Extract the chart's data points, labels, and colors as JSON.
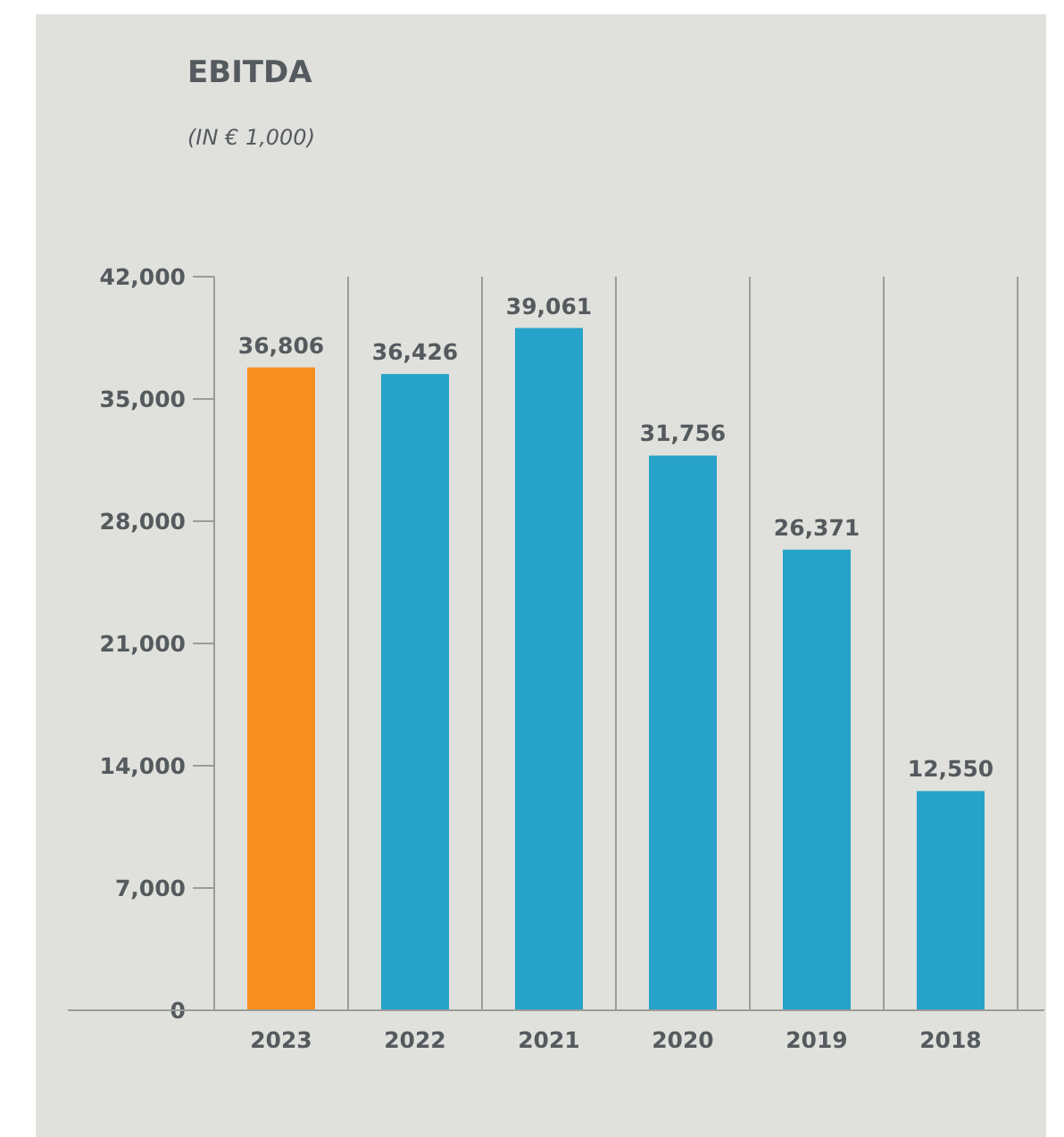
{
  "chart_data": {
    "type": "bar",
    "title": "EBITDA",
    "subtitle": "(IN € 1,000)",
    "categories": [
      "2023",
      "2022",
      "2021",
      "2020",
      "2019",
      "2018"
    ],
    "values": [
      36806,
      36426,
      39061,
      31756,
      26371,
      12550
    ],
    "colors": [
      "#f7901e",
      "#27a2c8",
      "#27a2c8",
      "#27a2c8",
      "#27a2c8",
      "#27a2c8"
    ],
    "ylim": [
      0,
      42000
    ],
    "yticks": [
      {
        "value": 0,
        "label": "0"
      },
      {
        "value": 7000,
        "label": "7,000"
      },
      {
        "value": 14000,
        "label": "14,000"
      },
      {
        "value": 21000,
        "label": "21,000"
      },
      {
        "value": 28000,
        "label": "28,000"
      },
      {
        "value": 35000,
        "label": "35,000"
      },
      {
        "value": 42000,
        "label": "42,000"
      }
    ],
    "value_labels": [
      "36,806",
      "36,426",
      "39,061",
      "31,756",
      "26,371",
      "12,550"
    ],
    "grid": "x"
  }
}
